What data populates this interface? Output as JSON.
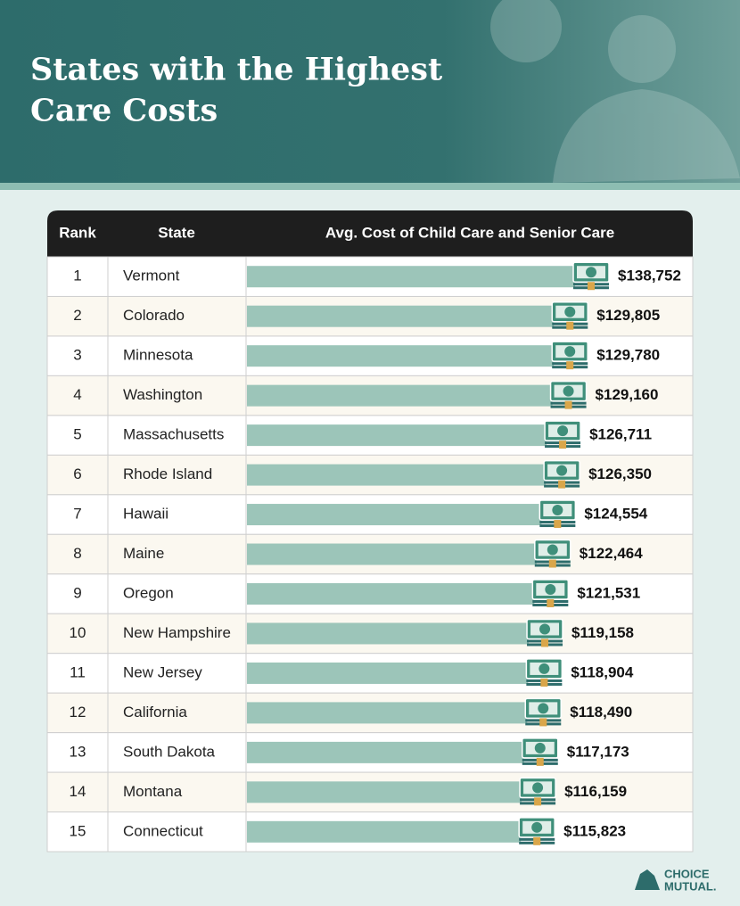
{
  "title": "States with the Highest Care Costs",
  "columns": [
    "Rank",
    "State",
    "Avg. Cost of Child Care and Senior Care"
  ],
  "chart_data": {
    "type": "bar",
    "orientation": "horizontal",
    "color": "#9cc5b9",
    "ranks": [
      1,
      2,
      3,
      4,
      5,
      6,
      7,
      8,
      9,
      10,
      11,
      12,
      13,
      14,
      15
    ],
    "categories": [
      "Vermont",
      "Colorado",
      "Minnesota",
      "Washington",
      "Massachusetts",
      "Rhode Island",
      "Hawaii",
      "Maine",
      "Oregon",
      "New Hampshire",
      "New Jersey",
      "California",
      "South Dakota",
      "Montana",
      "Connecticut"
    ],
    "values": [
      138752,
      129805,
      129780,
      129160,
      126711,
      126350,
      124554,
      122464,
      121531,
      119158,
      118904,
      118490,
      117173,
      116159,
      115823
    ],
    "value_labels": [
      "$138,752",
      "$129,805",
      "$129,780",
      "$129,160",
      "$126,711",
      "$126,350",
      "$124,554",
      "$122,464",
      "$121,531",
      "$119,158",
      "$118,904",
      "$118,490",
      "$117,173",
      "$116,159",
      "$115,823"
    ]
  },
  "logo": {
    "line1": "CHOICE",
    "line2": "MUTUAL."
  }
}
